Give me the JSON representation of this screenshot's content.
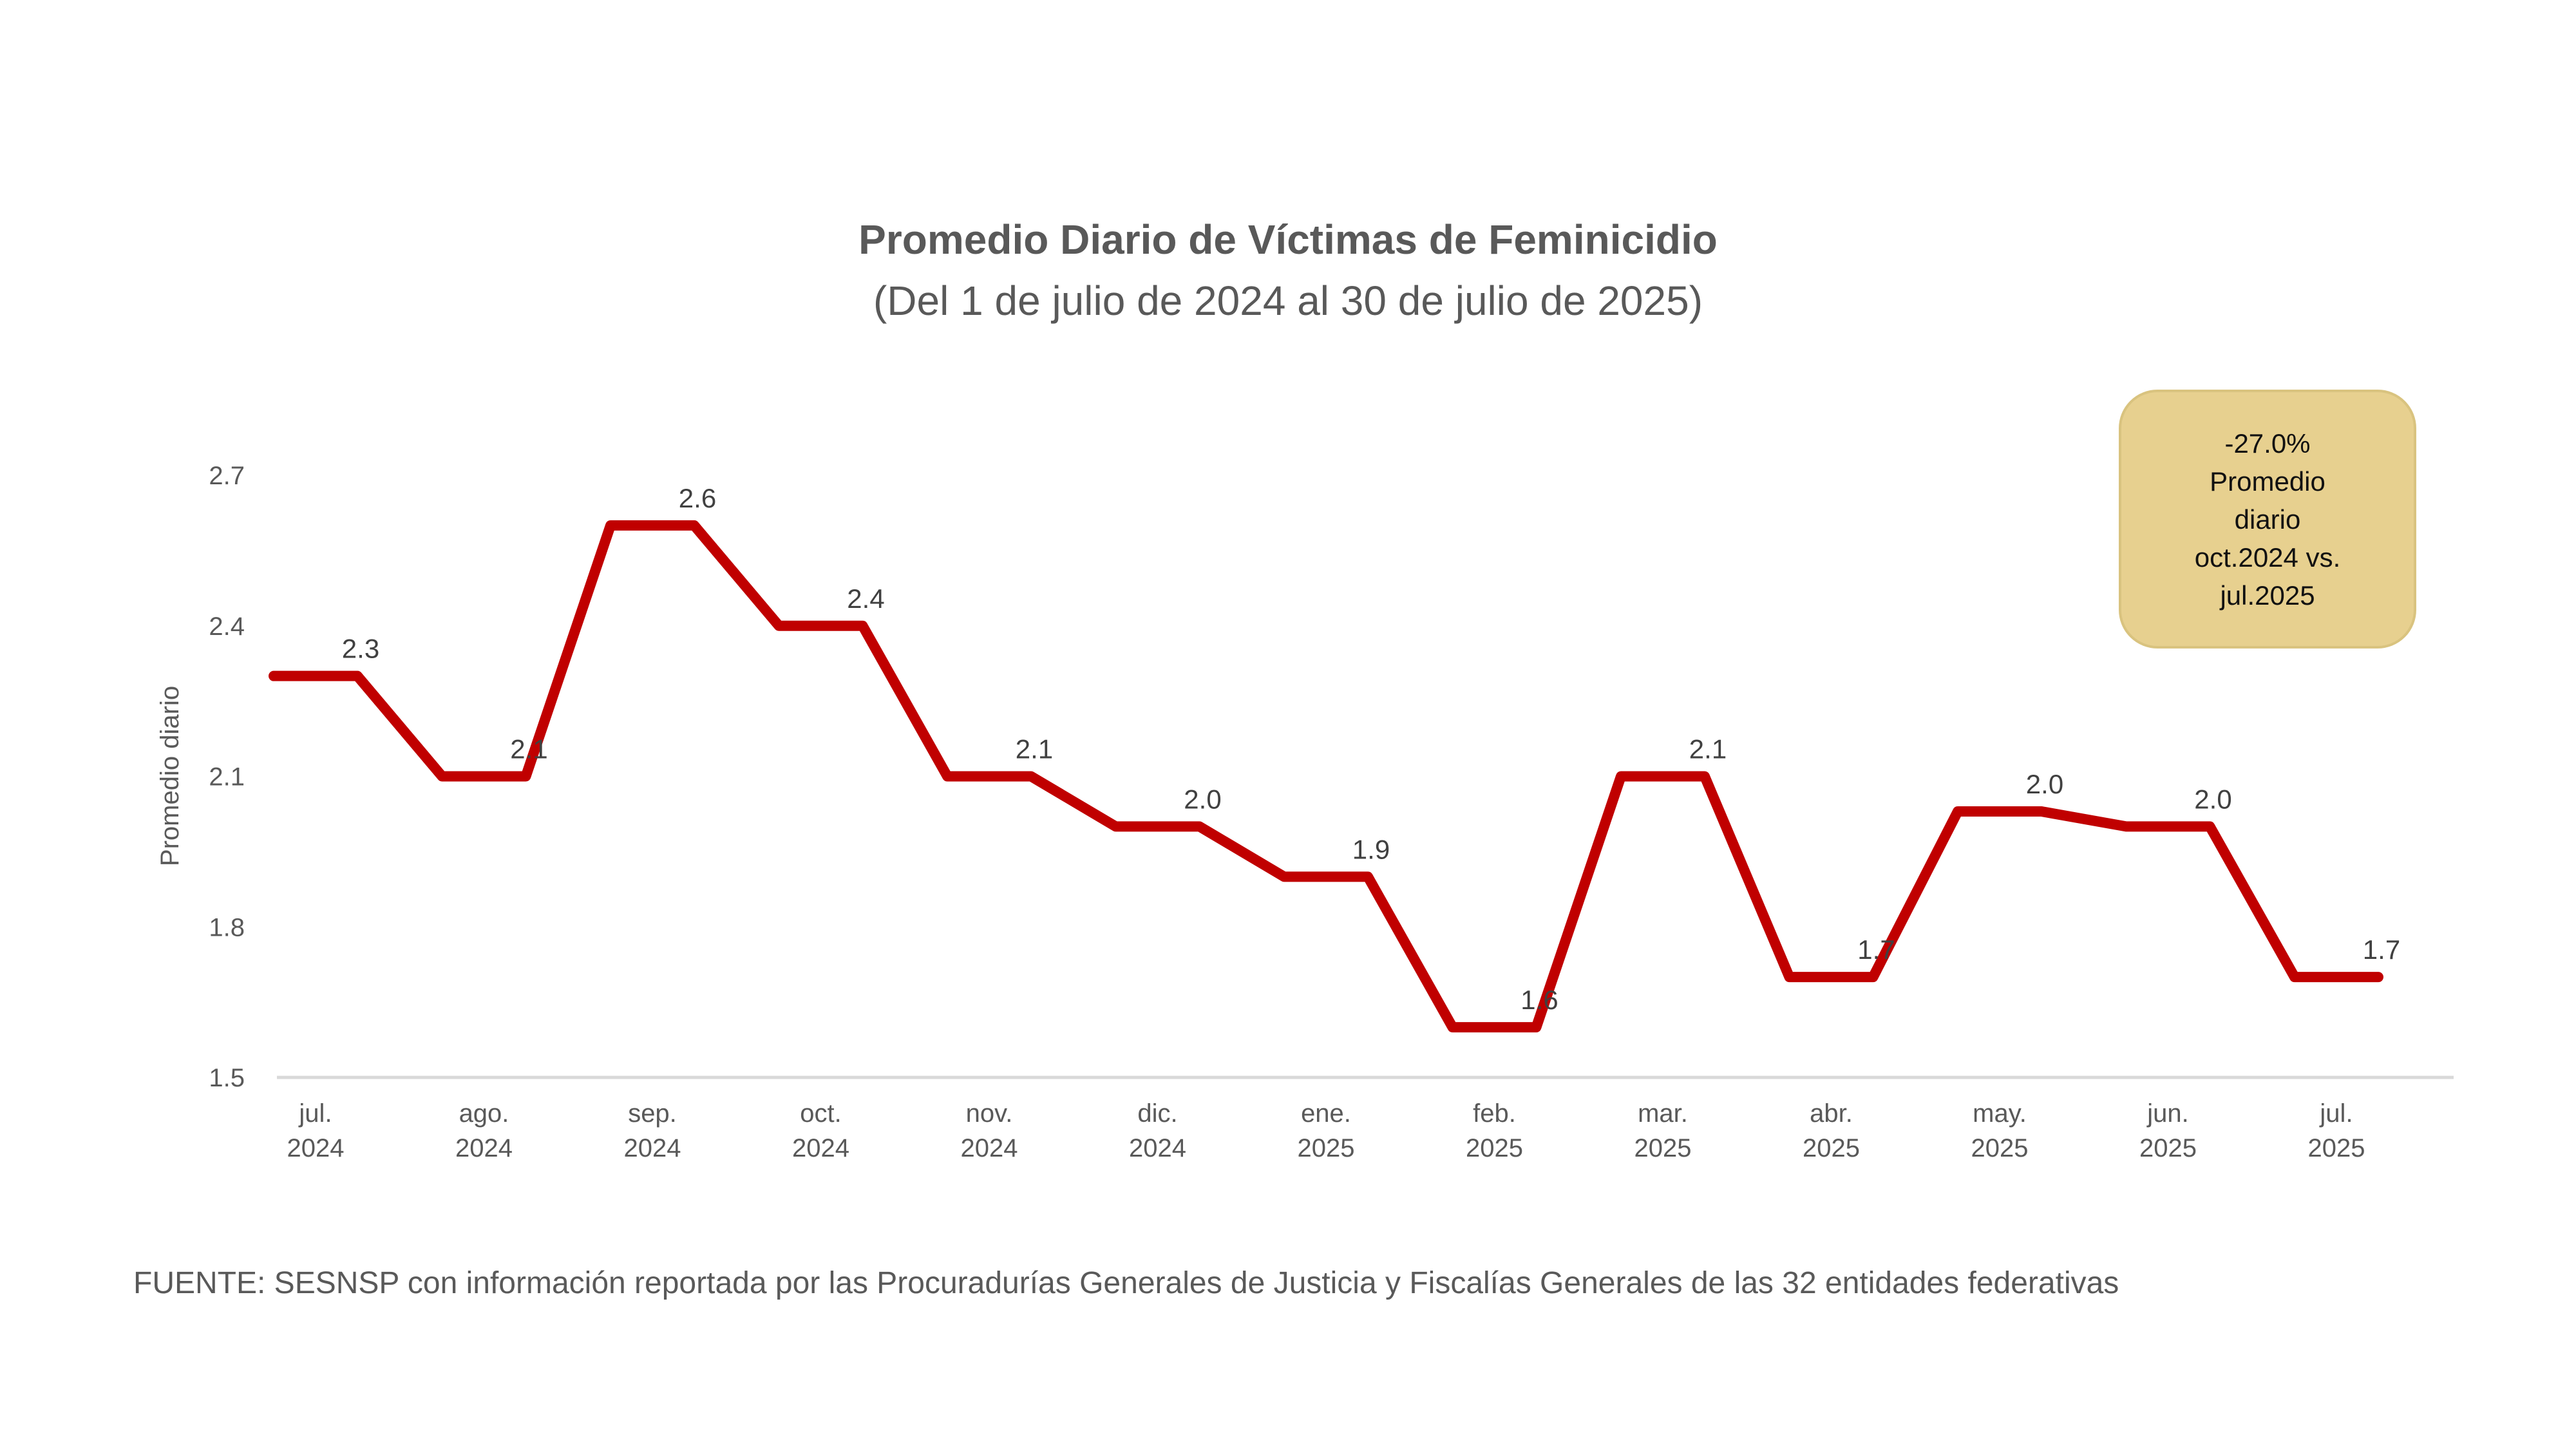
{
  "chart_data": {
    "type": "line",
    "title": "Promedio Diario de Víctimas de Feminicidio",
    "subtitle": "(Del 1 de julio de 2024 al 30 de julio de 2025)",
    "ylabel": "Promedio diario",
    "xlabel": "",
    "ylim": [
      1.5,
      2.7
    ],
    "yticks": [
      "1.5",
      "1.8",
      "2.1",
      "2.4",
      "2.7"
    ],
    "grid": false,
    "categories": [
      [
        "jul.",
        "2024"
      ],
      [
        "ago.",
        "2024"
      ],
      [
        "sep.",
        "2024"
      ],
      [
        "oct.",
        "2024"
      ],
      [
        "nov.",
        "2024"
      ],
      [
        "dic.",
        "2024"
      ],
      [
        "ene.",
        "2025"
      ],
      [
        "feb.",
        "2025"
      ],
      [
        "mar.",
        "2025"
      ],
      [
        "abr.",
        "2025"
      ],
      [
        "may.",
        "2025"
      ],
      [
        "jun.",
        "2025"
      ],
      [
        "jul.",
        "2025"
      ]
    ],
    "values": [
      2.3,
      2.1,
      2.6,
      2.4,
      2.1,
      2.0,
      1.9,
      1.6,
      2.1,
      1.7,
      2.03,
      2.0,
      1.7
    ],
    "data_labels": [
      "2.3",
      "2.1",
      "2.6",
      "2.4",
      "2.1",
      "2.0",
      "1.9",
      "1.6",
      "2.1",
      "1.7",
      "2.0",
      "2.0",
      "1.7"
    ],
    "line_color": "#c00000",
    "axis_color": "#d9d9d9",
    "annotation": "-27.0%\nPromedio\ndiario\noct.2024 vs.\njul.2025",
    "annotation_color": "#e7d08f",
    "source": "FUENTE: SESNSP con información reportada por las Procuradurías Generales de Justicia y Fiscalías Generales de las 32 entidades federativas"
  }
}
